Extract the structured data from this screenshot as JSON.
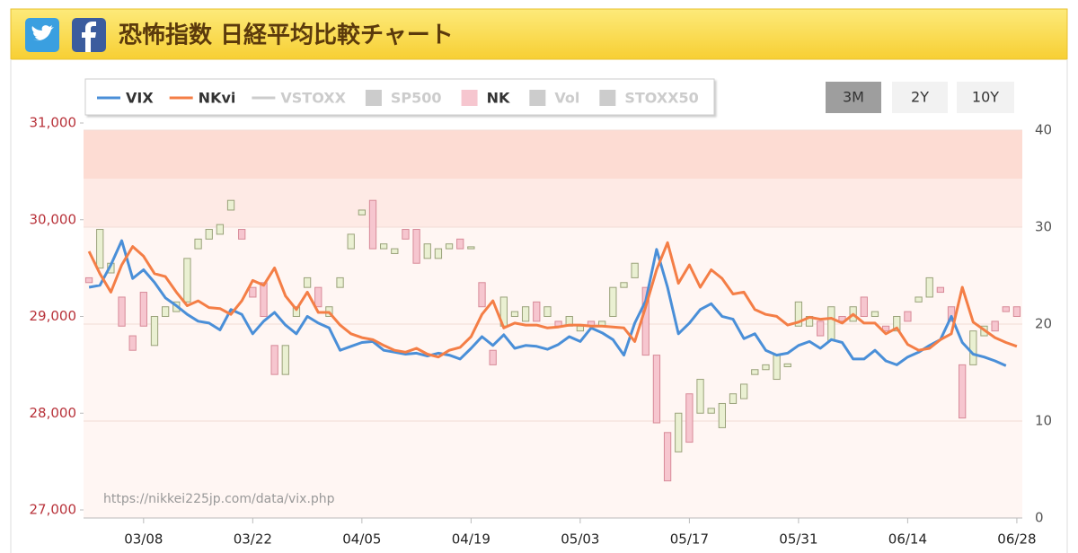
{
  "header": {
    "title": "恐怖指数 日経平均比較チャート"
  },
  "range_buttons": [
    {
      "label": "3M",
      "active": true
    },
    {
      "label": "2Y",
      "active": false
    },
    {
      "label": "10Y",
      "active": false
    }
  ],
  "chart_data": {
    "type": "candlestick",
    "source_url": "https://nikkei225jp.com/data/vix.php",
    "categories": [
      null,
      null,
      null,
      null,
      null,
      "03/08",
      null,
      null,
      null,
      null,
      null,
      null,
      null,
      null,
      null,
      "03/22",
      null,
      null,
      null,
      null,
      null,
      null,
      null,
      null,
      null,
      "04/05",
      null,
      null,
      null,
      null,
      null,
      null,
      null,
      null,
      null,
      "04/19",
      null,
      null,
      null,
      null,
      null,
      null,
      null,
      null,
      null,
      "05/03",
      null,
      null,
      null,
      null,
      null,
      null,
      null,
      null,
      null,
      "05/17",
      null,
      null,
      null,
      null,
      null,
      null,
      null,
      null,
      null,
      "05/31",
      null,
      null,
      null,
      null,
      null,
      null,
      null,
      null,
      null,
      "06/14",
      null,
      null,
      null,
      null,
      null,
      null,
      null,
      null,
      null,
      "06/28"
    ],
    "ylim": [
      27000,
      31000
    ],
    "yticks": [
      {
        "value": 27000,
        "label": "27,000"
      },
      {
        "value": 28000,
        "label": "28,000"
      },
      {
        "value": 29000,
        "label": "29,000"
      },
      {
        "value": 30000,
        "label": "30,000"
      },
      {
        "value": 31000,
        "label": "31,000"
      }
    ],
    "y2lim": [
      0,
      40
    ],
    "y2ticks": [
      0,
      10,
      20,
      30,
      40
    ],
    "y2bands": [
      {
        "from": 0,
        "to": 30,
        "color": "#fff6f3"
      },
      {
        "from": 30,
        "to": 35,
        "color": "#feeae5"
      },
      {
        "from": 35,
        "to": 40,
        "color": "#fddcd3"
      }
    ],
    "candles": {
      "name": "NK",
      "color": "#f6c6cf",
      "color_up": "#eaf0d2",
      "color_down": "#f6c6cf",
      "open": [
        29400,
        29500,
        29450,
        29200,
        28800,
        29250,
        28700,
        29000,
        29050,
        29150,
        29700,
        29800,
        29850,
        30100,
        29900,
        29300,
        29350,
        28700,
        28400,
        29000,
        29300,
        29300,
        29000,
        29300,
        29700,
        30050,
        30200,
        29700,
        29650,
        29900,
        29900,
        29600,
        29600,
        29700,
        29800,
        29700,
        29350,
        28650,
        28900,
        29000,
        28950,
        29150,
        29000,
        28950,
        28900,
        28850,
        28950,
        28900,
        29000,
        29300,
        29400,
        29300,
        28600,
        27800,
        27600,
        28200,
        28000,
        28000,
        27850,
        28100,
        28150,
        28400,
        28450,
        28350,
        28480,
        28900,
        28900,
        28950,
        28750,
        29000,
        28950,
        29200,
        29000,
        28900,
        28850,
        29050,
        29150,
        29200,
        29300,
        29100,
        28500,
        28500,
        28800,
        28950,
        29100,
        29100
      ],
      "close": [
        29350,
        29900,
        29550,
        28900,
        28650,
        28900,
        29000,
        29100,
        29150,
        29600,
        29800,
        29900,
        29950,
        30200,
        29800,
        29200,
        29000,
        28400,
        28700,
        29100,
        29400,
        29100,
        29100,
        29400,
        29850,
        30100,
        29700,
        29750,
        29700,
        29800,
        29550,
        29750,
        29700,
        29750,
        29700,
        29720,
        29100,
        28500,
        29200,
        29050,
        29100,
        28950,
        29100,
        28900,
        29000,
        28900,
        28900,
        28950,
        29300,
        29350,
        29550,
        28600,
        27900,
        27300,
        28000,
        27700,
        28350,
        28050,
        28100,
        28200,
        28300,
        28450,
        28500,
        28600,
        28510,
        29150,
        29000,
        28800,
        29100,
        28950,
        29100,
        29000,
        29050,
        28850,
        29000,
        28950,
        29200,
        29400,
        29250,
        28950,
        27950,
        28850,
        28900,
        28850,
        29050,
        29000
      ]
    },
    "series": [
      {
        "name": "VIX",
        "color": "#4a8fd8",
        "axis": "y2",
        "values": [
          23.8,
          24,
          26.1,
          28.6,
          24.7,
          25.6,
          24.3,
          22.7,
          21.9,
          21,
          20.3,
          20.1,
          19.4,
          21.5,
          21,
          19,
          20.3,
          21.2,
          19.9,
          19,
          20.8,
          20.1,
          19.6,
          17.3,
          17.7,
          18.1,
          18.2,
          17.3,
          17.1,
          16.9,
          17,
          16.7,
          17,
          16.8,
          16.4,
          17.5,
          18.7,
          17.8,
          18.9,
          17.5,
          17.8,
          17.7,
          17.4,
          17.9,
          18.7,
          18.2,
          19.6,
          19.1,
          18.4,
          16.8,
          20.1,
          22.4,
          27.7,
          23.8,
          19,
          20.1,
          21.5,
          22.1,
          20.8,
          20.5,
          18.5,
          19,
          17.3,
          16.8,
          17,
          17.8,
          18.2,
          17.5,
          18.4,
          18.1,
          16.4,
          16.4,
          17.3,
          16.2,
          15.8,
          16.6,
          17.1,
          17.8,
          18.4,
          20.8,
          18.1,
          16.9,
          16.6,
          16.2,
          15.7,
          null
        ]
      },
      {
        "name": "NKvi",
        "color": "#f47e46",
        "axis": "y2",
        "values": [
          27.5,
          25.2,
          23.3,
          26.1,
          28,
          27,
          25.2,
          24.9,
          23.3,
          21.9,
          22.4,
          21.7,
          21.6,
          21,
          22.4,
          24.5,
          24,
          25.8,
          22.9,
          21.5,
          23.3,
          21.2,
          21.2,
          19.9,
          19,
          18.6,
          18.4,
          17.8,
          17.3,
          17.1,
          17.5,
          16.9,
          16.6,
          17.3,
          17.6,
          18.7,
          21,
          22.4,
          19.6,
          20.1,
          19.9,
          19.9,
          19.6,
          19.7,
          19.9,
          19.9,
          19.8,
          19.8,
          19.7,
          19.6,
          18.2,
          21.8,
          25.6,
          28.4,
          24.2,
          26.1,
          23.8,
          25.6,
          24.7,
          23.1,
          23.3,
          21.5,
          21,
          20.8,
          19.9,
          20.2,
          20.7,
          20.5,
          20.6,
          20.1,
          21,
          20.1,
          20.1,
          19,
          19.6,
          17.9,
          17.3,
          17.5,
          18.4,
          19,
          23.8,
          20.2,
          19.4,
          18.6,
          18.1,
          17.7
        ]
      }
    ],
    "hidden_series": [
      {
        "name": "VSTOXX",
        "symbol": "line"
      },
      {
        "name": "SP500",
        "symbol": "box"
      },
      {
        "name": "Vol",
        "symbol": "box"
      },
      {
        "name": "STOXX50",
        "symbol": "box"
      }
    ]
  }
}
